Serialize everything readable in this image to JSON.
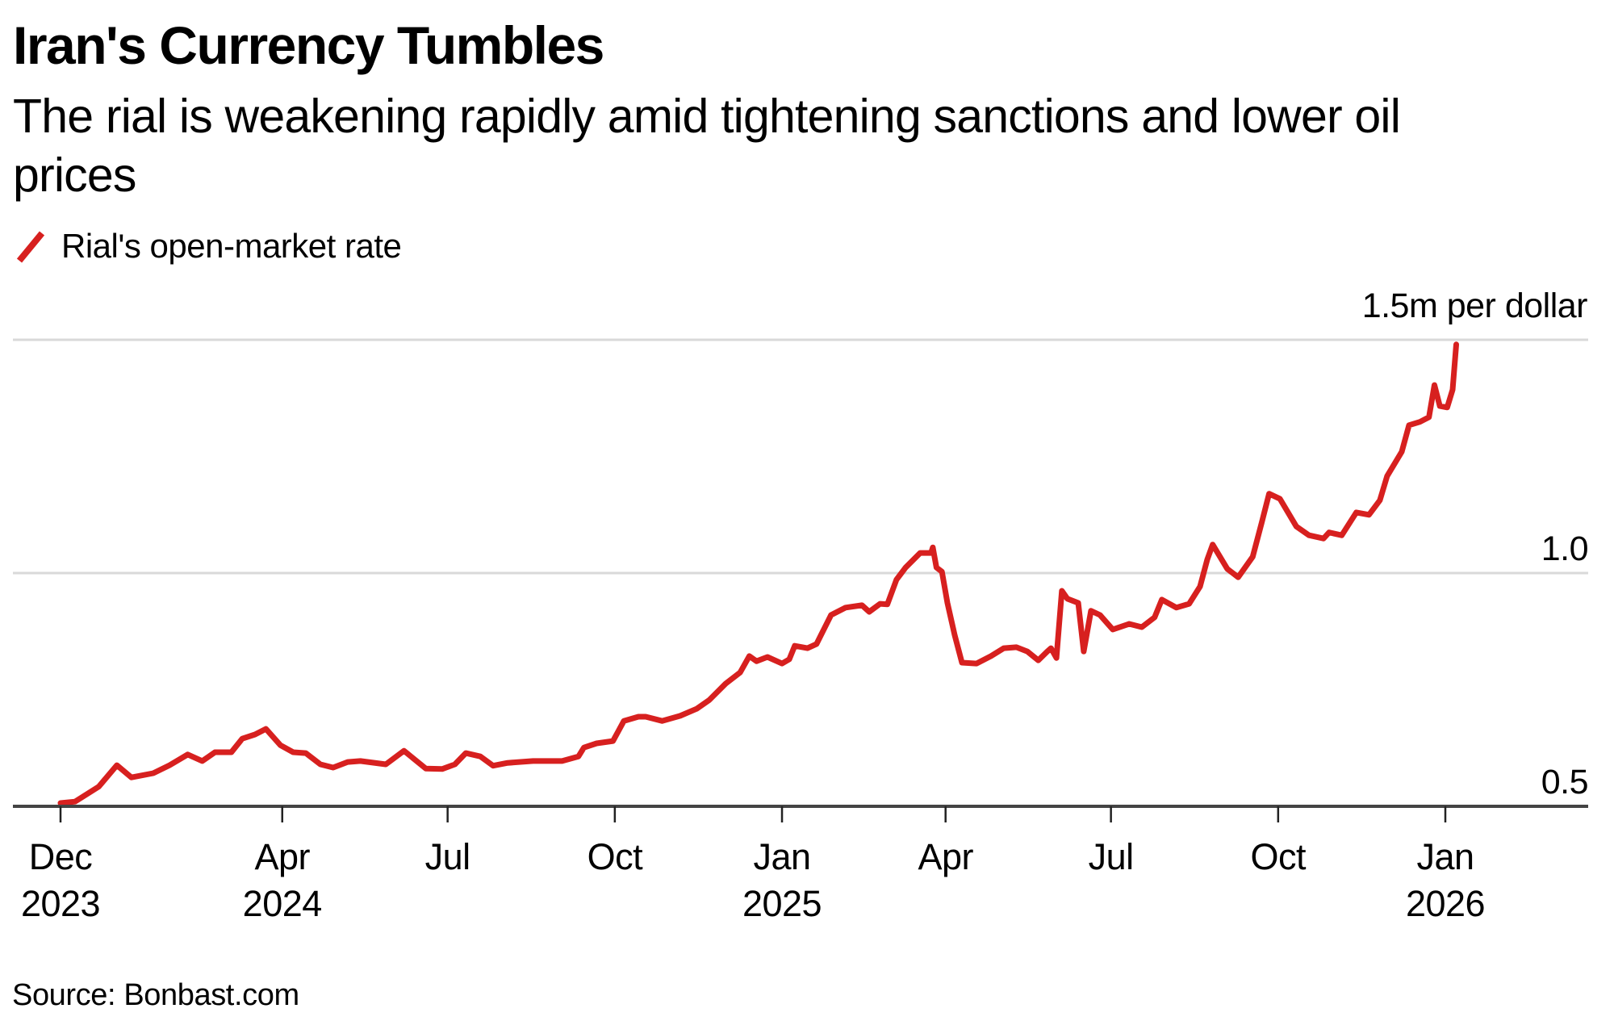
{
  "chart_data": {
    "type": "line",
    "title": "Iran's Currency Tumbles",
    "subtitle": "The rial is weakening rapidly amid tightening sanctions and lower oil prices",
    "xlabel": "",
    "ylabel": "",
    "unit_label": "1.5m per dollar",
    "source": "Source: Bonbast.com",
    "grid": true,
    "legend_position": "top-left",
    "ylim": [
      0.5,
      1.5
    ],
    "xlim": [
      "2023-11-25",
      "2026-03-15"
    ],
    "y_ticks": [
      {
        "value": 0.5,
        "label": "0.5"
      },
      {
        "value": 1.0,
        "label": "1.0"
      },
      {
        "value": 1.5,
        "label": "1.5m per dollar"
      }
    ],
    "x_ticks": [
      {
        "date": "2023-12-01",
        "label": "Dec",
        "sublabel": "2023"
      },
      {
        "date": "2024-04-01",
        "label": "Apr",
        "sublabel": "2024"
      },
      {
        "date": "2024-07-01",
        "label": "Jul",
        "sublabel": ""
      },
      {
        "date": "2024-10-01",
        "label": "Oct",
        "sublabel": ""
      },
      {
        "date": "2025-01-01",
        "label": "Jan",
        "sublabel": "2025"
      },
      {
        "date": "2025-04-01",
        "label": "Apr",
        "sublabel": ""
      },
      {
        "date": "2025-07-01",
        "label": "Jul",
        "sublabel": ""
      },
      {
        "date": "2025-10-01",
        "label": "Oct",
        "sublabel": ""
      },
      {
        "date": "2026-01-01",
        "label": "Jan",
        "sublabel": "2026"
      }
    ],
    "series": [
      {
        "name": "Rial's open-market rate",
        "unit": "million rials per US dollar",
        "color": "#d7201f",
        "x": [
          "2023-12-01",
          "2023-12-09",
          "2023-12-22",
          "2024-01-01",
          "2024-01-09",
          "2024-01-21",
          "2024-01-30",
          "2024-02-09",
          "2024-02-17",
          "2024-02-24",
          "2024-03-04",
          "2024-03-10",
          "2024-03-17",
          "2024-03-23",
          "2024-03-31",
          "2024-04-07",
          "2024-04-14",
          "2024-04-22",
          "2024-04-29",
          "2024-05-07",
          "2024-05-14",
          "2024-05-28",
          "2024-06-07",
          "2024-06-19",
          "2024-06-28",
          "2024-07-05",
          "2024-07-11",
          "2024-07-19",
          "2024-07-26",
          "2024-08-03",
          "2024-08-17",
          "2024-09-02",
          "2024-09-11",
          "2024-09-14",
          "2024-09-21",
          "2024-09-30",
          "2024-10-06",
          "2024-10-14",
          "2024-10-18",
          "2024-10-27",
          "2024-11-06",
          "2024-11-15",
          "2024-11-22",
          "2024-12-01",
          "2024-12-09",
          "2024-12-14",
          "2024-12-18",
          "2024-12-24",
          "2025-01-01",
          "2025-01-05",
          "2025-01-08",
          "2025-01-15",
          "2025-01-20",
          "2025-01-24",
          "2025-01-28",
          "2025-02-05",
          "2025-02-14",
          "2025-02-18",
          "2025-02-24",
          "2025-02-28",
          "2025-03-05",
          "2025-03-10",
          "2025-03-18",
          "2025-03-24",
          "2025-03-25",
          "2025-03-27",
          "2025-03-30",
          "2025-04-02",
          "2025-04-06",
          "2025-04-10",
          "2025-04-18",
          "2025-04-26",
          "2025-05-03",
          "2025-05-10",
          "2025-05-16",
          "2025-05-22",
          "2025-05-27",
          "2025-05-29",
          "2025-06-01",
          "2025-06-04",
          "2025-06-07",
          "2025-06-13",
          "2025-06-16",
          "2025-06-20",
          "2025-06-25",
          "2025-07-02",
          "2025-07-11",
          "2025-07-18",
          "2025-07-25",
          "2025-07-29",
          "2025-08-06",
          "2025-08-13",
          "2025-08-19",
          "2025-08-23",
          "2025-08-26",
          "2025-09-03",
          "2025-09-09",
          "2025-09-17",
          "2025-09-22",
          "2025-09-26",
          "2025-10-02",
          "2025-10-11",
          "2025-10-18",
          "2025-10-26",
          "2025-10-29",
          "2025-11-05",
          "2025-11-13",
          "2025-11-20",
          "2025-11-26",
          "2025-11-30",
          "2025-12-08",
          "2025-12-12",
          "2025-12-18",
          "2025-12-23",
          "2025-12-26",
          "2025-12-29",
          "2026-01-02",
          "2026-01-05",
          "2026-01-07"
        ],
        "values": [
          0.507,
          0.51,
          0.542,
          0.588,
          0.562,
          0.571,
          0.588,
          0.611,
          0.597,
          0.616,
          0.616,
          0.645,
          0.654,
          0.666,
          0.631,
          0.616,
          0.614,
          0.59,
          0.583,
          0.595,
          0.597,
          0.59,
          0.619,
          0.581,
          0.58,
          0.59,
          0.614,
          0.607,
          0.587,
          0.593,
          0.597,
          0.597,
          0.607,
          0.626,
          0.635,
          0.64,
          0.683,
          0.692,
          0.692,
          0.683,
          0.694,
          0.709,
          0.728,
          0.763,
          0.787,
          0.822,
          0.811,
          0.82,
          0.806,
          0.815,
          0.844,
          0.839,
          0.848,
          0.879,
          0.91,
          0.926,
          0.931,
          0.917,
          0.934,
          0.933,
          0.986,
          1.012,
          1.043,
          1.043,
          1.055,
          1.012,
          1.003,
          0.936,
          0.867,
          0.808,
          0.806,
          0.822,
          0.839,
          0.841,
          0.832,
          0.813,
          0.832,
          0.839,
          0.818,
          0.962,
          0.945,
          0.936,
          0.832,
          0.919,
          0.91,
          0.879,
          0.891,
          0.884,
          0.905,
          0.943,
          0.926,
          0.934,
          0.971,
          1.029,
          1.061,
          1.009,
          0.991,
          1.035,
          1.109,
          1.17,
          1.159,
          1.1,
          1.081,
          1.074,
          1.087,
          1.081,
          1.13,
          1.125,
          1.156,
          1.208,
          1.26,
          1.317,
          1.324,
          1.334,
          1.403,
          1.358,
          1.355,
          1.393,
          1.49
        ]
      }
    ]
  },
  "colors": {
    "series": "#d7201f",
    "gridline": "#d9d9d9",
    "axis": "#444444"
  }
}
